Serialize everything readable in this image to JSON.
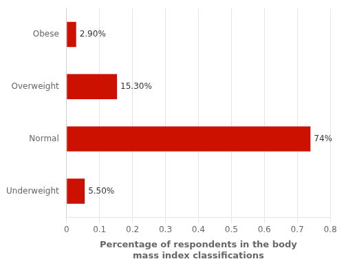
{
  "chart_data": {
    "type": "bar",
    "orientation": "horizontal",
    "categories": [
      "Underweight",
      "Normal",
      "Overweight",
      "Obese"
    ],
    "values": [
      0.055,
      0.74,
      0.153,
      0.029
    ],
    "value_labels": [
      "5.50%",
      "74%",
      "15.30%",
      "2.90%"
    ],
    "data_labels": true,
    "color": "#CC1100",
    "x_label": "Percentage of respondents in the body\nmass index classifications",
    "xlim": [
      0,
      0.8
    ],
    "xticks": [
      0.0,
      0.1,
      0.2,
      0.3,
      0.4,
      0.5,
      0.6,
      0.7,
      0.8
    ],
    "grid": true
  }
}
